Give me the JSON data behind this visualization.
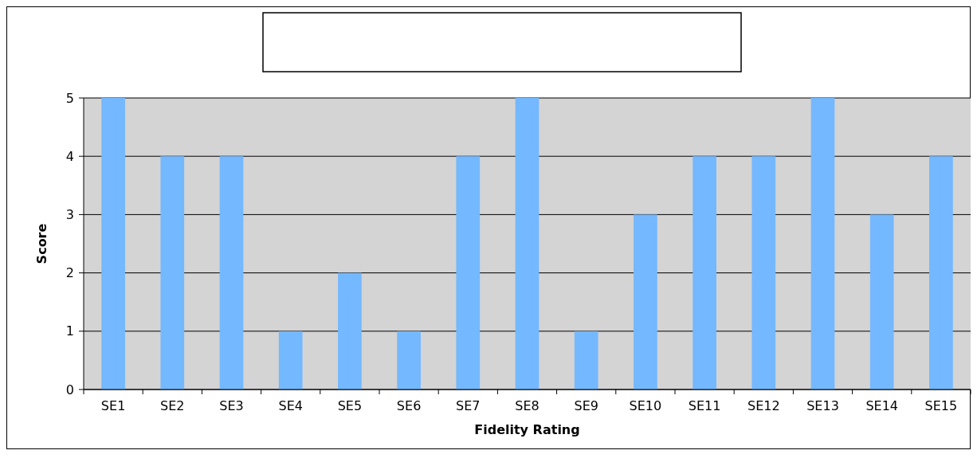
{
  "chart_data": {
    "type": "bar",
    "xlabel": "Fidelity Rating",
    "ylabel": "Score",
    "categories": [
      "SE1",
      "SE2",
      "SE3",
      "SE4",
      "SE5",
      "SE6",
      "SE7",
      "SE8",
      "SE9",
      "SE10",
      "SE11",
      "SE12",
      "SE13",
      "SE14",
      "SE15"
    ],
    "values": [
      5,
      4,
      4,
      1,
      2,
      1,
      4,
      5,
      1,
      3,
      4,
      4,
      5,
      3,
      4
    ],
    "color": "#74b8ff",
    "ylim": [
      0,
      5
    ],
    "yticks": [
      0,
      1,
      2,
      3,
      4,
      5
    ],
    "grid": "y"
  }
}
